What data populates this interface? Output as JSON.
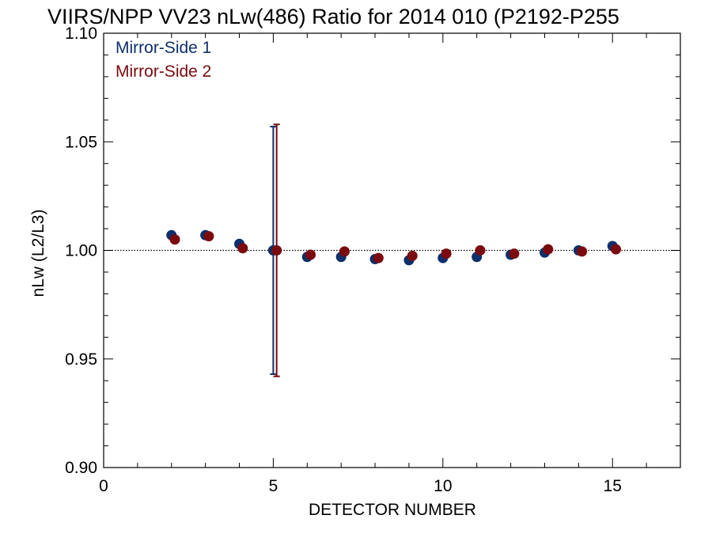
{
  "chart_data": {
    "type": "scatter",
    "title": "VIIRS/NPP VV23 nLw(486) Ratio for 2014 010 (P2192-P255",
    "xlabel": "DETECTOR NUMBER",
    "ylabel": "nLw (L2/L3)",
    "xlim": [
      0,
      17
    ],
    "ylim": [
      0.9,
      1.1
    ],
    "x_ticks": [
      0,
      5,
      10,
      15
    ],
    "x_tick_labels": [
      "0",
      "5",
      "10",
      "15"
    ],
    "x_minor_step": 1,
    "y_ticks": [
      0.9,
      0.95,
      1.0,
      1.05,
      1.1
    ],
    "y_tick_labels": [
      "0.90",
      "0.95",
      "1.00",
      "1.05",
      "1.10"
    ],
    "y_minor_step": 0.01,
    "reference_line": 1.0,
    "grid": false,
    "legend_position": "top-left",
    "series": [
      {
        "name": "Mirror-Side 1",
        "color": "#0d2f6b",
        "x": [
          2,
          3,
          4,
          5,
          6,
          7,
          8,
          9,
          10,
          11,
          12,
          13,
          14,
          15
        ],
        "values": [
          1.007,
          1.007,
          1.003,
          1.0,
          0.997,
          0.997,
          0.996,
          0.9955,
          0.9965,
          0.997,
          0.998,
          0.999,
          1.0,
          1.002
        ],
        "error_bars": [
          {
            "x": 5,
            "low": 0.943,
            "high": 1.057
          }
        ]
      },
      {
        "name": "Mirror-Side 2",
        "color": "#7a0a0e",
        "x": [
          2.1,
          3.1,
          4.1,
          5.1,
          6.1,
          7.1,
          8.1,
          9.1,
          10.1,
          11.1,
          12.1,
          13.1,
          14.1,
          15.1
        ],
        "values": [
          1.005,
          1.0065,
          1.001,
          1.0,
          0.998,
          0.9995,
          0.9965,
          0.9975,
          0.9985,
          1.0,
          0.9985,
          1.0005,
          0.9995,
          1.0005
        ],
        "error_bars": [
          {
            "x": 5.1,
            "low": 0.942,
            "high": 1.058
          }
        ]
      }
    ]
  }
}
